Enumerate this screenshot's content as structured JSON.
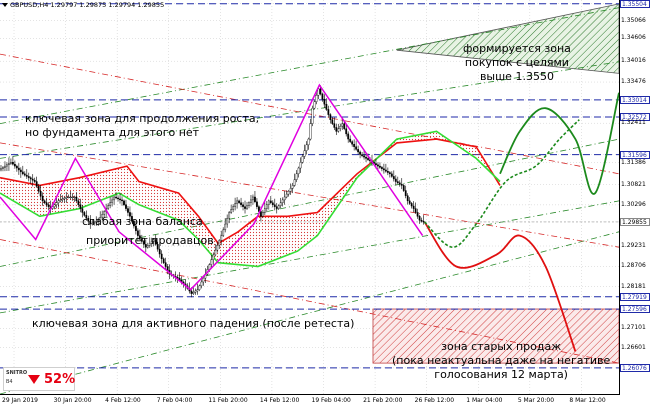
{
  "header": {
    "symbol": "GBPUSD,H4",
    "ohlc": "1.29797 1.29875 1.29794 1.29855"
  },
  "annotations": {
    "buy_zone": "формируется зона\nпокупок с целями\nвыше 1.3550",
    "key_growth": "ключевая зона для продолжения роста,\nно фундамента для этого нет",
    "weak_balance": "слабая зона баланса",
    "seller_priority": "приоритет продавцов",
    "key_fall": "ключевая зона для активного падения (после ретеста)",
    "old_sales": "зона старых продаж\n(пока неактуальна даже на негативе\nголосования 12 марта)"
  },
  "sentiment": {
    "brand": "SNITRO",
    "brand_sub": "B4",
    "value": "52%"
  },
  "colors": {
    "grid": "#c8c8c8",
    "level": "#1f2aa8",
    "channel": "#2a8a2a",
    "red_channel": "#d62828",
    "magenta": "#e000e0",
    "cloud_green": "#33dd33",
    "cloud_red": "#ee1111",
    "forecast_red": "#e01010",
    "forecast_green": "#1c8a1c",
    "candle": "#000000"
  },
  "chart_data": {
    "type": "line",
    "symbol": "GBPUSD",
    "timeframe": "H4",
    "ylim": [
      1.254,
      1.356
    ],
    "price_ticks": [
      "1.35504",
      "1.35066",
      "1.34606",
      "1.34016",
      "1.33476",
      "1.33014",
      "1.32572",
      "1.32411",
      "1.31596",
      "1.31386",
      "1.30821",
      "1.30296",
      "1.29855",
      "1.29231",
      "1.28706",
      "1.28181",
      "1.27919",
      "1.27596",
      "1.27101",
      "1.26601",
      "1.26076"
    ],
    "time_labels": [
      "29 Jan 2019",
      "30 Jan 20:00",
      "4 Feb 12:00",
      "7 Feb 04:00",
      "11 Feb 20:00",
      "14 Feb 12:00",
      "19 Feb 04:00",
      "21 Feb 20:00",
      "26 Feb 12:00",
      "1 Mar 04:00",
      "5 Mar 20:00",
      "8 Mar 12:00"
    ],
    "current_price": 1.29855,
    "key_levels": [
      1.35504,
      1.33014,
      1.32572,
      1.31596,
      1.29855,
      1.27919,
      1.27596,
      1.26076
    ],
    "price_path": [
      [
        0,
        1.312
      ],
      [
        6,
        1.314
      ],
      [
        12,
        1.311
      ],
      [
        18,
        1.309
      ],
      [
        22,
        1.304
      ],
      [
        26,
        1.302
      ],
      [
        30,
        1.304
      ],
      [
        34,
        1.305
      ],
      [
        38,
        1.305
      ],
      [
        42,
        1.301
      ],
      [
        46,
        1.298
      ],
      [
        50,
        1.299
      ],
      [
        54,
        1.302
      ],
      [
        58,
        1.305
      ],
      [
        62,
        1.304
      ],
      [
        66,
        1.3
      ],
      [
        70,
        1.295
      ],
      [
        74,
        1.292
      ],
      [
        78,
        1.294
      ],
      [
        82,
        1.289
      ],
      [
        86,
        1.285
      ],
      [
        90,
        1.284
      ],
      [
        94,
        1.282
      ],
      [
        97,
        1.28
      ],
      [
        100,
        1.281
      ],
      [
        104,
        1.285
      ],
      [
        108,
        1.29
      ],
      [
        112,
        1.295
      ],
      [
        116,
        1.301
      ],
      [
        120,
        1.304
      ],
      [
        124,
        1.302
      ],
      [
        128,
        1.305
      ],
      [
        132,
        1.3
      ],
      [
        136,
        1.304
      ],
      [
        140,
        1.302
      ],
      [
        144,
        1.305
      ],
      [
        148,
        1.308
      ],
      [
        152,
        1.314
      ],
      [
        156,
        1.32
      ],
      [
        158,
        1.328
      ],
      [
        161,
        1.333
      ],
      [
        164,
        1.329
      ],
      [
        167,
        1.325
      ],
      [
        170,
        1.322
      ],
      [
        173,
        1.324
      ],
      [
        176,
        1.32
      ],
      [
        179,
        1.318
      ],
      [
        182,
        1.316
      ],
      [
        185,
        1.315
      ],
      [
        188,
        1.314
      ],
      [
        191,
        1.313
      ],
      [
        194,
        1.312
      ],
      [
        197,
        1.311
      ],
      [
        200,
        1.309
      ],
      [
        203,
        1.308
      ],
      [
        206,
        1.304
      ],
      [
        209,
        1.302
      ],
      [
        212,
        1.299
      ],
      [
        214,
        1.2985
      ]
    ],
    "magenta_path": [
      [
        0,
        1.305
      ],
      [
        18,
        1.294
      ],
      [
        38,
        1.315
      ],
      [
        60,
        1.296
      ],
      [
        96,
        1.281
      ],
      [
        128,
        1.298
      ],
      [
        161,
        1.334
      ],
      [
        213,
        1.295
      ]
    ],
    "cloud_red_line": [
      [
        0,
        1.31
      ],
      [
        20,
        1.308
      ],
      [
        40,
        1.31
      ],
      [
        64,
        1.313
      ],
      [
        70,
        1.309
      ],
      [
        90,
        1.306
      ],
      [
        100,
        1.3
      ],
      [
        110,
        1.293
      ],
      [
        120,
        1.296
      ],
      [
        130,
        1.3
      ],
      [
        145,
        1.3
      ],
      [
        160,
        1.301
      ],
      [
        180,
        1.311
      ],
      [
        200,
        1.319
      ],
      [
        220,
        1.32
      ],
      [
        240,
        1.318
      ],
      [
        252,
        1.308
      ]
    ],
    "cloud_green_line": [
      [
        0,
        1.306
      ],
      [
        20,
        1.3
      ],
      [
        40,
        1.302
      ],
      [
        60,
        1.306
      ],
      [
        70,
        1.303
      ],
      [
        90,
        1.299
      ],
      [
        100,
        1.294
      ],
      [
        110,
        1.288
      ],
      [
        130,
        1.287
      ],
      [
        150,
        1.291
      ],
      [
        160,
        1.295
      ],
      [
        180,
        1.31
      ],
      [
        200,
        1.32
      ],
      [
        220,
        1.322
      ],
      [
        240,
        1.315
      ],
      [
        252,
        1.309
      ]
    ],
    "forecast_red": [
      [
        214,
        1.2985
      ],
      [
        230,
        1.287
      ],
      [
        250,
        1.29
      ],
      [
        262,
        1.295
      ],
      [
        275,
        1.287
      ],
      [
        290,
        1.265
      ]
    ],
    "forecast_green_dotted": [
      [
        214,
        1.2985
      ],
      [
        228,
        1.292
      ],
      [
        240,
        1.298
      ],
      [
        255,
        1.309
      ],
      [
        270,
        1.313
      ],
      [
        282,
        1.32
      ],
      [
        292,
        1.325
      ]
    ],
    "forecast_green_solid": [
      [
        252,
        1.311
      ],
      [
        262,
        1.322
      ],
      [
        275,
        1.328
      ],
      [
        290,
        1.32
      ],
      [
        300,
        1.306
      ],
      [
        312,
        1.332
      ]
    ],
    "channels_green": [
      [
        [
          0,
          1.324
        ],
        [
          312,
          1.354
        ]
      ],
      [
        [
          0,
          1.315
        ],
        [
          312,
          1.34
        ]
      ],
      [
        [
          0,
          1.287
        ],
        [
          312,
          1.32
        ]
      ],
      [
        [
          0,
          1.275
        ],
        [
          312,
          1.304
        ]
      ],
      [
        [
          0,
          1.254
        ],
        [
          312,
          1.296
        ]
      ]
    ],
    "channels_red": [
      [
        [
          0,
          1.342
        ],
        [
          312,
          1.311
        ]
      ],
      [
        [
          0,
          1.319
        ],
        [
          312,
          1.292
        ]
      ],
      [
        [
          0,
          1.294
        ],
        [
          312,
          1.262
        ]
      ]
    ],
    "buy_zone_triangle": [
      [
        200,
        1.343
      ],
      [
        312,
        1.355
      ],
      [
        312,
        1.337
      ]
    ],
    "sell_zone_box": [
      [
        188,
        1.276
      ],
      [
        312,
        1.262
      ]
    ]
  }
}
